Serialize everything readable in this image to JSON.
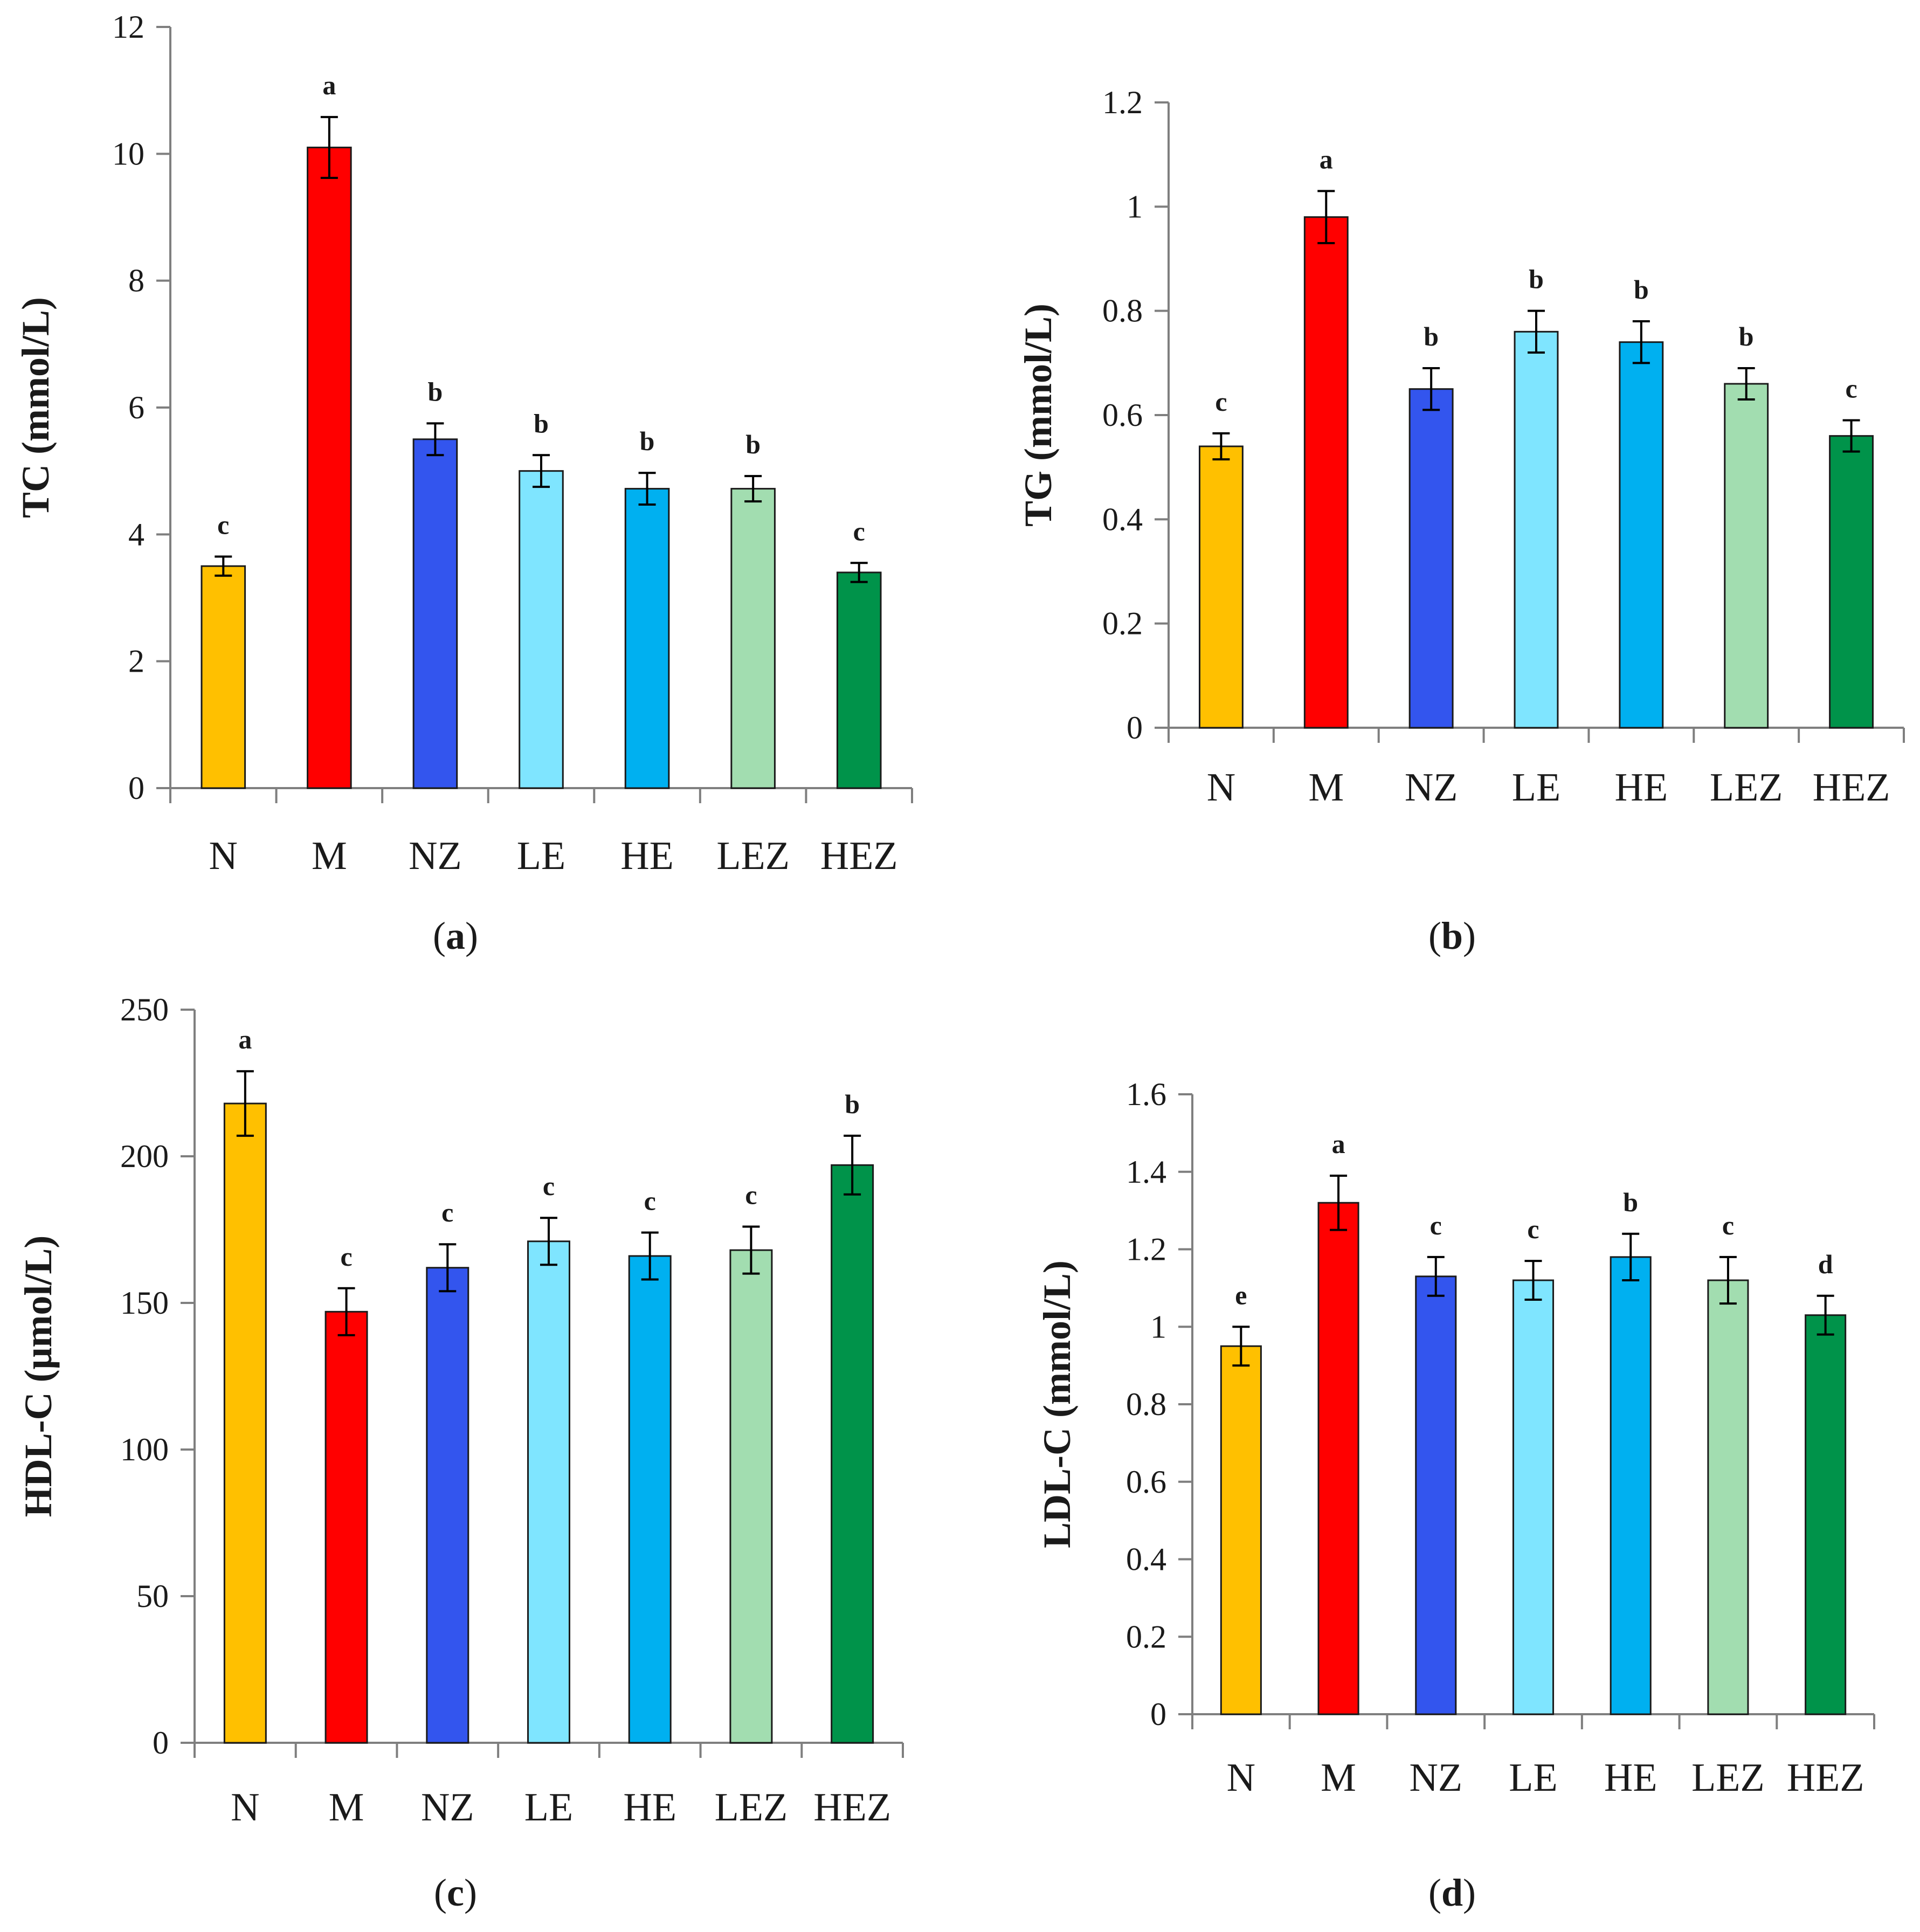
{
  "figure": {
    "charts": [
      {
        "caption_letter": "a"
      },
      {
        "caption_letter": "b"
      },
      {
        "caption_letter": "c"
      },
      {
        "caption_letter": "d"
      }
    ]
  },
  "chart_data": [
    {
      "type": "bar",
      "categories": [
        "N",
        "M",
        "NZ",
        "LE",
        "HE",
        "LEZ",
        "HEZ"
      ],
      "values": [
        3.5,
        10.1,
        5.5,
        5.0,
        4.72,
        4.72,
        3.4
      ],
      "errors": [
        0.15,
        0.48,
        0.25,
        0.25,
        0.25,
        0.2,
        0.15
      ],
      "significance": [
        "c",
        "a",
        "b",
        "b",
        "b",
        "b",
        "c"
      ],
      "ylabel": "TC (mmol/L)",
      "ylim": [
        0,
        12
      ],
      "yticks": [
        "0",
        "2",
        "4",
        "6",
        "8",
        "10",
        "12"
      ],
      "colors": [
        "#FFC000",
        "#FF0000",
        "#3355EE",
        "#7FE5FF",
        "#00B0F0",
        "#A2DDB0",
        "#00934A"
      ]
    },
    {
      "type": "bar",
      "categories": [
        "N",
        "M",
        "NZ",
        "LE",
        "HE",
        "LEZ",
        "HEZ"
      ],
      "values": [
        0.54,
        0.98,
        0.65,
        0.76,
        0.74,
        0.66,
        0.56
      ],
      "errors": [
        0.025,
        0.05,
        0.04,
        0.04,
        0.04,
        0.03,
        0.03
      ],
      "significance": [
        "c",
        "a",
        "b",
        "b",
        "b",
        "b",
        "c"
      ],
      "ylabel": "TG (mmol/L)",
      "ylim": [
        0,
        1.2
      ],
      "yticks": [
        "0",
        "0.2",
        "0.4",
        "0.6",
        "0.8",
        "1",
        "1.2"
      ],
      "colors": [
        "#FFC000",
        "#FF0000",
        "#3355EE",
        "#7FE5FF",
        "#00B0F0",
        "#A2DDB0",
        "#00934A"
      ]
    },
    {
      "type": "bar",
      "categories": [
        "N",
        "M",
        "NZ",
        "LE",
        "HE",
        "LEZ",
        "HEZ"
      ],
      "values": [
        218,
        147,
        162,
        171,
        166,
        168,
        197
      ],
      "errors": [
        11,
        8,
        8,
        8,
        8,
        8,
        10
      ],
      "significance": [
        "a",
        "c",
        "c",
        "c",
        "c",
        "c",
        "b"
      ],
      "ylabel": "HDL-C (μmol/L)",
      "ylim": [
        0,
        250
      ],
      "yticks": [
        "0",
        "50",
        "100",
        "150",
        "200",
        "250"
      ],
      "colors": [
        "#FFC000",
        "#FF0000",
        "#3355EE",
        "#7FE5FF",
        "#00B0F0",
        "#A2DDB0",
        "#00934A"
      ]
    },
    {
      "type": "bar",
      "categories": [
        "N",
        "M",
        "NZ",
        "LE",
        "HE",
        "LEZ",
        "HEZ"
      ],
      "values": [
        0.95,
        1.32,
        1.13,
        1.12,
        1.18,
        1.12,
        1.03
      ],
      "errors": [
        0.05,
        0.07,
        0.05,
        0.05,
        0.06,
        0.06,
        0.05
      ],
      "significance": [
        "e",
        "a",
        "c",
        "c",
        "b",
        "c",
        "d"
      ],
      "ylabel": "LDL-C (mmol/L)",
      "ylim": [
        0,
        1.6
      ],
      "yticks": [
        "0",
        "0.2",
        "0.4",
        "0.6",
        "0.8",
        "1",
        "1.2",
        "1.4",
        "1.6"
      ],
      "colors": [
        "#FFC000",
        "#FF0000",
        "#3355EE",
        "#7FE5FF",
        "#00B0F0",
        "#A2DDB0",
        "#00934A"
      ]
    }
  ]
}
